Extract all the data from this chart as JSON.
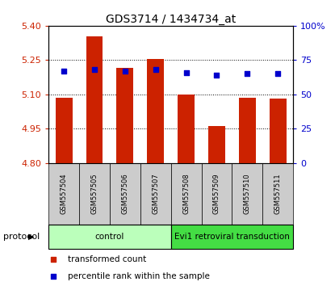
{
  "title": "GDS3714 / 1434734_at",
  "samples": [
    "GSM557504",
    "GSM557505",
    "GSM557506",
    "GSM557507",
    "GSM557508",
    "GSM557509",
    "GSM557510",
    "GSM557511"
  ],
  "bar_values": [
    5.085,
    5.355,
    5.215,
    5.255,
    5.098,
    4.963,
    5.085,
    5.08
  ],
  "dot_values": [
    67,
    68,
    67,
    68,
    66,
    64,
    65,
    65
  ],
  "ylim": [
    4.8,
    5.4
  ],
  "y2lim": [
    0,
    100
  ],
  "yticks": [
    4.8,
    4.95,
    5.1,
    5.25,
    5.4
  ],
  "y2ticks": [
    0,
    25,
    50,
    75,
    100
  ],
  "bar_color": "#cc2200",
  "dot_color": "#0000cc",
  "bar_base": 4.8,
  "groups": [
    {
      "label": "control",
      "indices": [
        0,
        1,
        2,
        3
      ],
      "color": "#bbffbb"
    },
    {
      "label": "Evi1 retroviral transduction",
      "indices": [
        4,
        5,
        6,
        7
      ],
      "color": "#44dd44"
    }
  ],
  "protocol_label": "protocol",
  "legend_bar_label": "transformed count",
  "legend_dot_label": "percentile rank within the sample",
  "bar_color_hex": "#cc2200",
  "dot_color_hex": "#0000cc",
  "plot_bg": "#ffffff",
  "figsize": [
    4.15,
    3.54
  ],
  "dpi": 100
}
